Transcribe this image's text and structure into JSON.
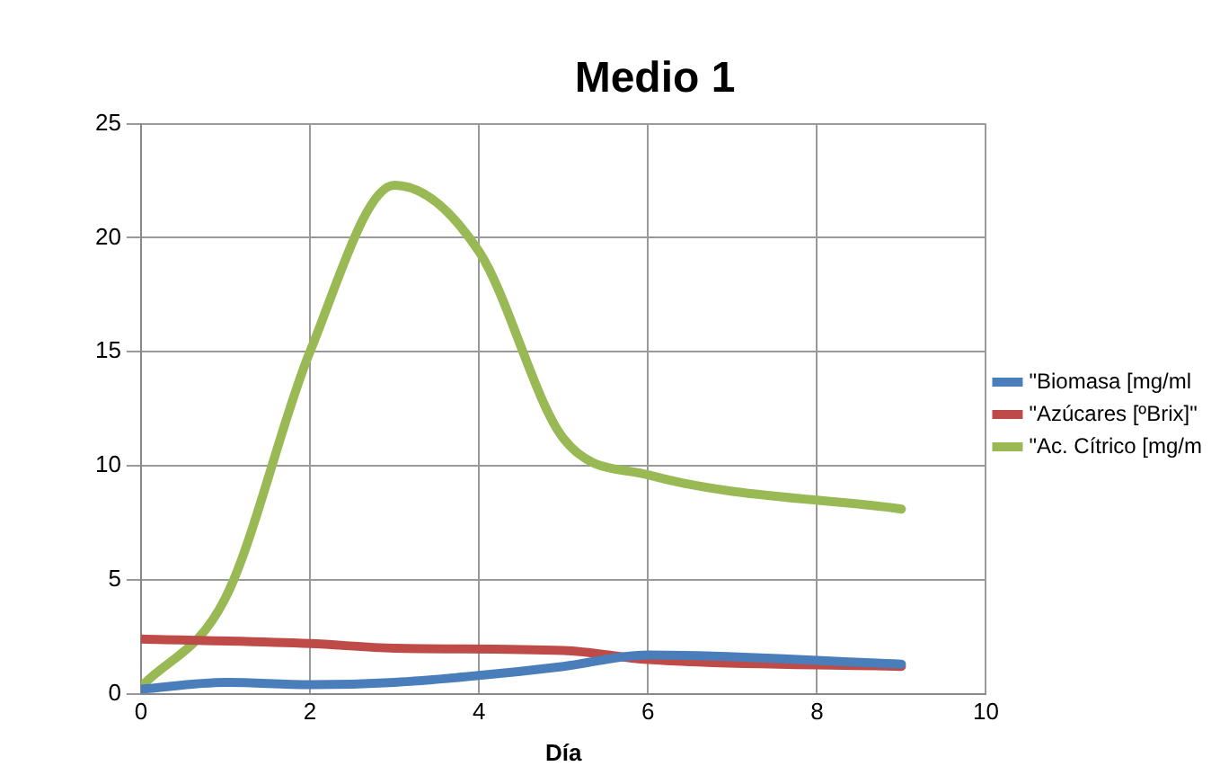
{
  "chart_data": {
    "type": "line",
    "title": "Medio 1",
    "xlabel": "Día",
    "xlim": [
      0,
      10
    ],
    "xticks": [
      0,
      2,
      4,
      6,
      8,
      10
    ],
    "ylim": [
      0,
      25
    ],
    "yticks": [
      0,
      5,
      10,
      15,
      20,
      25
    ],
    "grid": true,
    "legend": "right",
    "marker": "none",
    "line_style": "solid",
    "series": [
      {
        "name": "\"Biomasa [mg/ml",
        "color": "#4a7ebb",
        "x": [
          0,
          1,
          2,
          3,
          4,
          5,
          6,
          9
        ],
        "values": [
          0.2,
          0.5,
          0.4,
          0.5,
          0.8,
          1.2,
          1.7,
          1.3
        ]
      },
      {
        "name": "\"Azúcares [ºBrix]\"",
        "color": "#be4b48",
        "x": [
          0,
          2,
          3,
          5,
          6,
          9
        ],
        "values": [
          2.4,
          2.2,
          2.0,
          1.9,
          1.5,
          1.2
        ]
      },
      {
        "name": "\"Ac. Cítrico [mg/m",
        "color": "#98b954",
        "x": [
          0,
          1,
          2,
          3,
          4,
          5,
          6,
          9
        ],
        "values": [
          0.3,
          4.2,
          15,
          22.3,
          19.4,
          11.2,
          9.6,
          8.1
        ]
      }
    ]
  }
}
